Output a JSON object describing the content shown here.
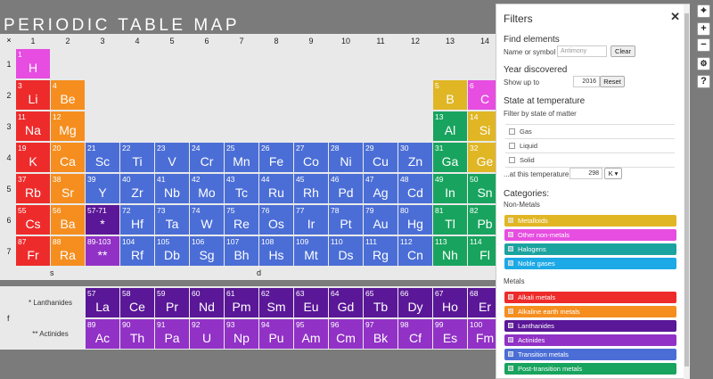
{
  "title": "PERIODIC TABLE MAP",
  "corner_label": "×",
  "column_headers": [
    "1",
    "2",
    "3",
    "4",
    "5",
    "6",
    "7",
    "8",
    "9",
    "10",
    "11",
    "12",
    "13",
    "14"
  ],
  "row_headers": [
    "1",
    "2",
    "3",
    "4",
    "5",
    "6",
    "7"
  ],
  "block_labels": {
    "s": "s",
    "d": "d",
    "f": "f"
  },
  "colors": {
    "alkali": "#ee2b2b",
    "alkaline": "#f58e1f",
    "lanthanide": "#5a1797",
    "actinide": "#9131c6",
    "transition": "#4b6ed6",
    "post_transition": "#18a45e",
    "metalloid": "#e0b625",
    "other_nonmetal": "#e64de0",
    "halogen": "#1ba3a0",
    "noble": "#1ca9e6"
  },
  "elements": [
    {
      "n": "1",
      "s": "H",
      "cat": "other_nonmetal",
      "row": 1,
      "col": 1
    },
    {
      "n": "3",
      "s": "Li",
      "cat": "alkali",
      "row": 2,
      "col": 1
    },
    {
      "n": "4",
      "s": "Be",
      "cat": "alkaline",
      "row": 2,
      "col": 2
    },
    {
      "n": "5",
      "s": "B",
      "cat": "metalloid",
      "row": 2,
      "col": 13
    },
    {
      "n": "6",
      "s": "C",
      "cat": "other_nonmetal",
      "row": 2,
      "col": 14
    },
    {
      "n": "11",
      "s": "Na",
      "cat": "alkali",
      "row": 3,
      "col": 1
    },
    {
      "n": "12",
      "s": "Mg",
      "cat": "alkaline",
      "row": 3,
      "col": 2
    },
    {
      "n": "13",
      "s": "Al",
      "cat": "post_transition",
      "row": 3,
      "col": 13
    },
    {
      "n": "14",
      "s": "Si",
      "cat": "metalloid",
      "row": 3,
      "col": 14
    },
    {
      "n": "19",
      "s": "K",
      "cat": "alkali",
      "row": 4,
      "col": 1
    },
    {
      "n": "20",
      "s": "Ca",
      "cat": "alkaline",
      "row": 4,
      "col": 2
    },
    {
      "n": "21",
      "s": "Sc",
      "cat": "transition",
      "row": 4,
      "col": 3
    },
    {
      "n": "22",
      "s": "Ti",
      "cat": "transition",
      "row": 4,
      "col": 4
    },
    {
      "n": "23",
      "s": "V",
      "cat": "transition",
      "row": 4,
      "col": 5
    },
    {
      "n": "24",
      "s": "Cr",
      "cat": "transition",
      "row": 4,
      "col": 6
    },
    {
      "n": "25",
      "s": "Mn",
      "cat": "transition",
      "row": 4,
      "col": 7
    },
    {
      "n": "26",
      "s": "Fe",
      "cat": "transition",
      "row": 4,
      "col": 8
    },
    {
      "n": "27",
      "s": "Co",
      "cat": "transition",
      "row": 4,
      "col": 9
    },
    {
      "n": "28",
      "s": "Ni",
      "cat": "transition",
      "row": 4,
      "col": 10
    },
    {
      "n": "29",
      "s": "Cu",
      "cat": "transition",
      "row": 4,
      "col": 11
    },
    {
      "n": "30",
      "s": "Zn",
      "cat": "transition",
      "row": 4,
      "col": 12
    },
    {
      "n": "31",
      "s": "Ga",
      "cat": "post_transition",
      "row": 4,
      "col": 13
    },
    {
      "n": "32",
      "s": "Ge",
      "cat": "metalloid",
      "row": 4,
      "col": 14
    },
    {
      "n": "37",
      "s": "Rb",
      "cat": "alkali",
      "row": 5,
      "col": 1
    },
    {
      "n": "38",
      "s": "Sr",
      "cat": "alkaline",
      "row": 5,
      "col": 2
    },
    {
      "n": "39",
      "s": "Y",
      "cat": "transition",
      "row": 5,
      "col": 3
    },
    {
      "n": "40",
      "s": "Zr",
      "cat": "transition",
      "row": 5,
      "col": 4
    },
    {
      "n": "41",
      "s": "Nb",
      "cat": "transition",
      "row": 5,
      "col": 5
    },
    {
      "n": "42",
      "s": "Mo",
      "cat": "transition",
      "row": 5,
      "col": 6
    },
    {
      "n": "43",
      "s": "Tc",
      "cat": "transition",
      "row": 5,
      "col": 7
    },
    {
      "n": "44",
      "s": "Ru",
      "cat": "transition",
      "row": 5,
      "col": 8
    },
    {
      "n": "45",
      "s": "Rh",
      "cat": "transition",
      "row": 5,
      "col": 9
    },
    {
      "n": "46",
      "s": "Pd",
      "cat": "transition",
      "row": 5,
      "col": 10
    },
    {
      "n": "47",
      "s": "Ag",
      "cat": "transition",
      "row": 5,
      "col": 11
    },
    {
      "n": "48",
      "s": "Cd",
      "cat": "transition",
      "row": 5,
      "col": 12
    },
    {
      "n": "49",
      "s": "In",
      "cat": "post_transition",
      "row": 5,
      "col": 13
    },
    {
      "n": "50",
      "s": "Sn",
      "cat": "post_transition",
      "row": 5,
      "col": 14
    },
    {
      "n": "55",
      "s": "Cs",
      "cat": "alkali",
      "row": 6,
      "col": 1
    },
    {
      "n": "56",
      "s": "Ba",
      "cat": "alkaline",
      "row": 6,
      "col": 2
    },
    {
      "n": "57-71",
      "s": "*",
      "cat": "lanthanide",
      "row": 6,
      "col": 3
    },
    {
      "n": "72",
      "s": "Hf",
      "cat": "transition",
      "row": 6,
      "col": 4
    },
    {
      "n": "73",
      "s": "Ta",
      "cat": "transition",
      "row": 6,
      "col": 5
    },
    {
      "n": "74",
      "s": "W",
      "cat": "transition",
      "row": 6,
      "col": 6
    },
    {
      "n": "75",
      "s": "Re",
      "cat": "transition",
      "row": 6,
      "col": 7
    },
    {
      "n": "76",
      "s": "Os",
      "cat": "transition",
      "row": 6,
      "col": 8
    },
    {
      "n": "77",
      "s": "Ir",
      "cat": "transition",
      "row": 6,
      "col": 9
    },
    {
      "n": "78",
      "s": "Pt",
      "cat": "transition",
      "row": 6,
      "col": 10
    },
    {
      "n": "79",
      "s": "Au",
      "cat": "transition",
      "row": 6,
      "col": 11
    },
    {
      "n": "80",
      "s": "Hg",
      "cat": "transition",
      "row": 6,
      "col": 12
    },
    {
      "n": "81",
      "s": "Tl",
      "cat": "post_transition",
      "row": 6,
      "col": 13
    },
    {
      "n": "82",
      "s": "Pb",
      "cat": "post_transition",
      "row": 6,
      "col": 14
    },
    {
      "n": "87",
      "s": "Fr",
      "cat": "alkali",
      "row": 7,
      "col": 1
    },
    {
      "n": "88",
      "s": "Ra",
      "cat": "alkaline",
      "row": 7,
      "col": 2
    },
    {
      "n": "89-103",
      "s": "**",
      "cat": "actinide",
      "row": 7,
      "col": 3
    },
    {
      "n": "104",
      "s": "Rf",
      "cat": "transition",
      "row": 7,
      "col": 4
    },
    {
      "n": "105",
      "s": "Db",
      "cat": "transition",
      "row": 7,
      "col": 5
    },
    {
      "n": "106",
      "s": "Sg",
      "cat": "transition",
      "row": 7,
      "col": 6
    },
    {
      "n": "107",
      "s": "Bh",
      "cat": "transition",
      "row": 7,
      "col": 7
    },
    {
      "n": "108",
      "s": "Hs",
      "cat": "transition",
      "row": 7,
      "col": 8
    },
    {
      "n": "109",
      "s": "Mt",
      "cat": "transition",
      "row": 7,
      "col": 9
    },
    {
      "n": "110",
      "s": "Ds",
      "cat": "transition",
      "row": 7,
      "col": 10
    },
    {
      "n": "111",
      "s": "Rg",
      "cat": "transition",
      "row": 7,
      "col": 11
    },
    {
      "n": "112",
      "s": "Cn",
      "cat": "transition",
      "row": 7,
      "col": 12
    },
    {
      "n": "113",
      "s": "Nh",
      "cat": "post_transition",
      "row": 7,
      "col": 13
    },
    {
      "n": "114",
      "s": "Fl",
      "cat": "post_transition",
      "row": 7,
      "col": 14
    }
  ],
  "f_rows": [
    {
      "label": "* Lanthanides",
      "cat": "lanthanide",
      "items": [
        {
          "n": "57",
          "s": "La"
        },
        {
          "n": "58",
          "s": "Ce"
        },
        {
          "n": "59",
          "s": "Pr"
        },
        {
          "n": "60",
          "s": "Nd"
        },
        {
          "n": "61",
          "s": "Pm"
        },
        {
          "n": "62",
          "s": "Sm"
        },
        {
          "n": "63",
          "s": "Eu"
        },
        {
          "n": "64",
          "s": "Gd"
        },
        {
          "n": "65",
          "s": "Tb"
        },
        {
          "n": "66",
          "s": "Dy"
        },
        {
          "n": "67",
          "s": "Ho"
        },
        {
          "n": "68",
          "s": "Er"
        }
      ]
    },
    {
      "label": "** Actinides",
      "cat": "actinide",
      "items": [
        {
          "n": "89",
          "s": "Ac"
        },
        {
          "n": "90",
          "s": "Th"
        },
        {
          "n": "91",
          "s": "Pa"
        },
        {
          "n": "92",
          "s": "U"
        },
        {
          "n": "93",
          "s": "Np"
        },
        {
          "n": "94",
          "s": "Pu"
        },
        {
          "n": "95",
          "s": "Am"
        },
        {
          "n": "96",
          "s": "Cm"
        },
        {
          "n": "97",
          "s": "Bk"
        },
        {
          "n": "98",
          "s": "Cf"
        },
        {
          "n": "99",
          "s": "Es"
        },
        {
          "n": "100",
          "s": "Fm"
        }
      ]
    }
  ],
  "filters": {
    "title": "Filters",
    "close": "✕",
    "find": {
      "heading": "Find elements",
      "label": "Name or symbol",
      "placeholder": "Antimony",
      "button": "Clear"
    },
    "year": {
      "heading": "Year discovered",
      "label": "Show up to",
      "value": "2016",
      "button": "Reset"
    },
    "state": {
      "heading": "State at temperature",
      "sub": "Filter by state of matter",
      "options": [
        "Gas",
        "Liquid",
        "Solid"
      ],
      "temp_label": "...at this temperature",
      "temp_value": "298",
      "unit": "K ▾"
    },
    "categories": {
      "heading": "Categories:",
      "nonmetals_label": "Non-Metals",
      "nonmetals": [
        {
          "label": "Metalloids",
          "cat": "metalloid"
        },
        {
          "label": "Other non-metals",
          "cat": "other_nonmetal"
        },
        {
          "label": "Halogens",
          "cat": "halogen"
        },
        {
          "label": "Noble gases",
          "cat": "noble"
        }
      ],
      "metals_label": "Metals",
      "metals": [
        {
          "label": "Alkali metals",
          "cat": "alkali"
        },
        {
          "label": "Alkaline earth metals",
          "cat": "alkaline"
        },
        {
          "label": "Lanthanides",
          "cat": "lanthanide"
        },
        {
          "label": "Actinides",
          "cat": "actinide"
        },
        {
          "label": "Transition metals",
          "cat": "transition"
        },
        {
          "label": "Post-transition metals",
          "cat": "post_transition"
        }
      ]
    }
  },
  "toolbar": {
    "locate": "⌖",
    "zoom_in": "+",
    "zoom_out": "−",
    "settings": "⚙",
    "help": "?"
  }
}
